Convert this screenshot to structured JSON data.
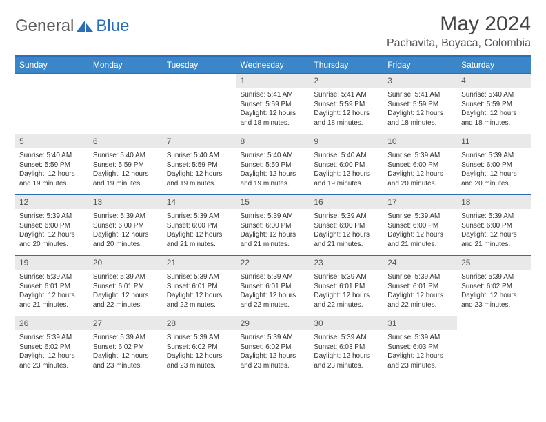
{
  "brand": {
    "name_a": "General",
    "name_b": "Blue",
    "logo_color": "#2a6fb5"
  },
  "header": {
    "title": "May 2024",
    "location": "Pachavita, Boyaca, Colombia"
  },
  "colors": {
    "header_bg": "#3b86c8",
    "header_text": "#ffffff",
    "rule": "#2a6fb5",
    "daynum_bg": "#e9e9e9",
    "text": "#333333"
  },
  "typography": {
    "title_fontsize": 30,
    "location_fontsize": 16,
    "dayheader_fontsize": 12,
    "body_fontsize": 10
  },
  "calendar": {
    "type": "table",
    "day_names": [
      "Sunday",
      "Monday",
      "Tuesday",
      "Wednesday",
      "Thursday",
      "Friday",
      "Saturday"
    ],
    "weeks": [
      [
        {
          "n": "",
          "sr": "",
          "ss": "",
          "dl": ""
        },
        {
          "n": "",
          "sr": "",
          "ss": "",
          "dl": ""
        },
        {
          "n": "",
          "sr": "",
          "ss": "",
          "dl": ""
        },
        {
          "n": "1",
          "sr": "Sunrise: 5:41 AM",
          "ss": "Sunset: 5:59 PM",
          "dl": "Daylight: 12 hours and 18 minutes."
        },
        {
          "n": "2",
          "sr": "Sunrise: 5:41 AM",
          "ss": "Sunset: 5:59 PM",
          "dl": "Daylight: 12 hours and 18 minutes."
        },
        {
          "n": "3",
          "sr": "Sunrise: 5:41 AM",
          "ss": "Sunset: 5:59 PM",
          "dl": "Daylight: 12 hours and 18 minutes."
        },
        {
          "n": "4",
          "sr": "Sunrise: 5:40 AM",
          "ss": "Sunset: 5:59 PM",
          "dl": "Daylight: 12 hours and 18 minutes."
        }
      ],
      [
        {
          "n": "5",
          "sr": "Sunrise: 5:40 AM",
          "ss": "Sunset: 5:59 PM",
          "dl": "Daylight: 12 hours and 19 minutes."
        },
        {
          "n": "6",
          "sr": "Sunrise: 5:40 AM",
          "ss": "Sunset: 5:59 PM",
          "dl": "Daylight: 12 hours and 19 minutes."
        },
        {
          "n": "7",
          "sr": "Sunrise: 5:40 AM",
          "ss": "Sunset: 5:59 PM",
          "dl": "Daylight: 12 hours and 19 minutes."
        },
        {
          "n": "8",
          "sr": "Sunrise: 5:40 AM",
          "ss": "Sunset: 5:59 PM",
          "dl": "Daylight: 12 hours and 19 minutes."
        },
        {
          "n": "9",
          "sr": "Sunrise: 5:40 AM",
          "ss": "Sunset: 6:00 PM",
          "dl": "Daylight: 12 hours and 19 minutes."
        },
        {
          "n": "10",
          "sr": "Sunrise: 5:39 AM",
          "ss": "Sunset: 6:00 PM",
          "dl": "Daylight: 12 hours and 20 minutes."
        },
        {
          "n": "11",
          "sr": "Sunrise: 5:39 AM",
          "ss": "Sunset: 6:00 PM",
          "dl": "Daylight: 12 hours and 20 minutes."
        }
      ],
      [
        {
          "n": "12",
          "sr": "Sunrise: 5:39 AM",
          "ss": "Sunset: 6:00 PM",
          "dl": "Daylight: 12 hours and 20 minutes."
        },
        {
          "n": "13",
          "sr": "Sunrise: 5:39 AM",
          "ss": "Sunset: 6:00 PM",
          "dl": "Daylight: 12 hours and 20 minutes."
        },
        {
          "n": "14",
          "sr": "Sunrise: 5:39 AM",
          "ss": "Sunset: 6:00 PM",
          "dl": "Daylight: 12 hours and 21 minutes."
        },
        {
          "n": "15",
          "sr": "Sunrise: 5:39 AM",
          "ss": "Sunset: 6:00 PM",
          "dl": "Daylight: 12 hours and 21 minutes."
        },
        {
          "n": "16",
          "sr": "Sunrise: 5:39 AM",
          "ss": "Sunset: 6:00 PM",
          "dl": "Daylight: 12 hours and 21 minutes."
        },
        {
          "n": "17",
          "sr": "Sunrise: 5:39 AM",
          "ss": "Sunset: 6:00 PM",
          "dl": "Daylight: 12 hours and 21 minutes."
        },
        {
          "n": "18",
          "sr": "Sunrise: 5:39 AM",
          "ss": "Sunset: 6:00 PM",
          "dl": "Daylight: 12 hours and 21 minutes."
        }
      ],
      [
        {
          "n": "19",
          "sr": "Sunrise: 5:39 AM",
          "ss": "Sunset: 6:01 PM",
          "dl": "Daylight: 12 hours and 21 minutes."
        },
        {
          "n": "20",
          "sr": "Sunrise: 5:39 AM",
          "ss": "Sunset: 6:01 PM",
          "dl": "Daylight: 12 hours and 22 minutes."
        },
        {
          "n": "21",
          "sr": "Sunrise: 5:39 AM",
          "ss": "Sunset: 6:01 PM",
          "dl": "Daylight: 12 hours and 22 minutes."
        },
        {
          "n": "22",
          "sr": "Sunrise: 5:39 AM",
          "ss": "Sunset: 6:01 PM",
          "dl": "Daylight: 12 hours and 22 minutes."
        },
        {
          "n": "23",
          "sr": "Sunrise: 5:39 AM",
          "ss": "Sunset: 6:01 PM",
          "dl": "Daylight: 12 hours and 22 minutes."
        },
        {
          "n": "24",
          "sr": "Sunrise: 5:39 AM",
          "ss": "Sunset: 6:01 PM",
          "dl": "Daylight: 12 hours and 22 minutes."
        },
        {
          "n": "25",
          "sr": "Sunrise: 5:39 AM",
          "ss": "Sunset: 6:02 PM",
          "dl": "Daylight: 12 hours and 23 minutes."
        }
      ],
      [
        {
          "n": "26",
          "sr": "Sunrise: 5:39 AM",
          "ss": "Sunset: 6:02 PM",
          "dl": "Daylight: 12 hours and 23 minutes."
        },
        {
          "n": "27",
          "sr": "Sunrise: 5:39 AM",
          "ss": "Sunset: 6:02 PM",
          "dl": "Daylight: 12 hours and 23 minutes."
        },
        {
          "n": "28",
          "sr": "Sunrise: 5:39 AM",
          "ss": "Sunset: 6:02 PM",
          "dl": "Daylight: 12 hours and 23 minutes."
        },
        {
          "n": "29",
          "sr": "Sunrise: 5:39 AM",
          "ss": "Sunset: 6:02 PM",
          "dl": "Daylight: 12 hours and 23 minutes."
        },
        {
          "n": "30",
          "sr": "Sunrise: 5:39 AM",
          "ss": "Sunset: 6:03 PM",
          "dl": "Daylight: 12 hours and 23 minutes."
        },
        {
          "n": "31",
          "sr": "Sunrise: 5:39 AM",
          "ss": "Sunset: 6:03 PM",
          "dl": "Daylight: 12 hours and 23 minutes."
        },
        {
          "n": "",
          "sr": "",
          "ss": "",
          "dl": ""
        }
      ]
    ]
  }
}
